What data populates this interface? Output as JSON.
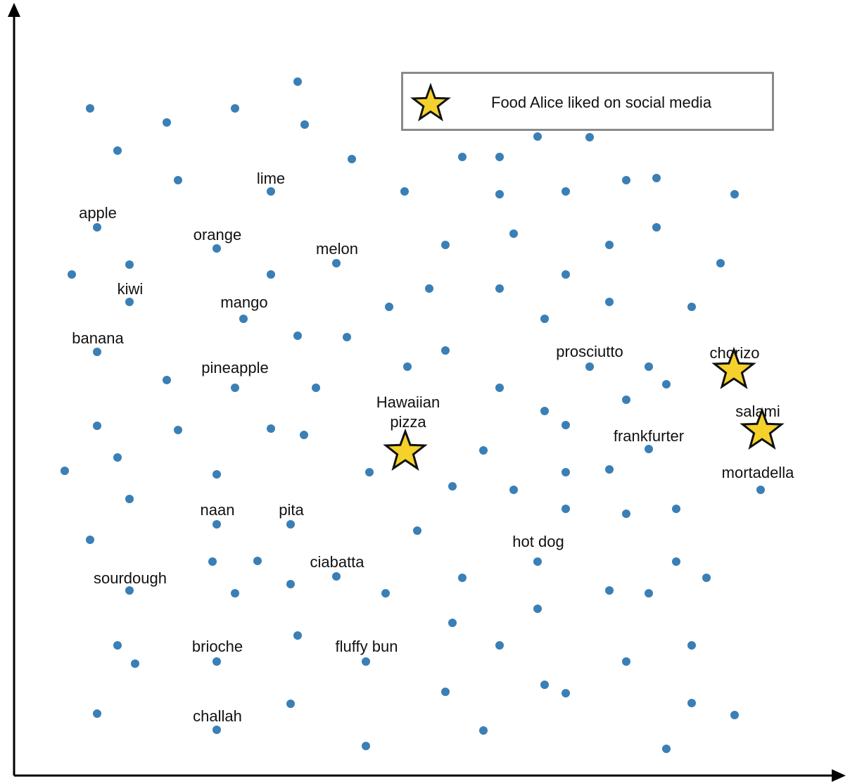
{
  "colors": {
    "point": "#3a7fb5",
    "star_fill": "#f5d12c",
    "star_stroke": "#111111",
    "axis": "#000000",
    "legend_border": "#8a8a8a"
  },
  "legend": {
    "label": "Food Alice liked on social media",
    "icon": "star-icon"
  },
  "labels": [
    "lime",
    "apple",
    "orange",
    "melon",
    "kiwi",
    "mango",
    "banana",
    "pineapple",
    "prosciutto",
    "chorizo",
    "Hawaiian",
    "pizza",
    "salami",
    "frankfurter",
    "mortadella",
    "naan",
    "pita",
    "hot dog",
    "ciabatta",
    "sourdough",
    "brioche",
    "fluffy bun",
    "challah"
  ],
  "liked_foods": [
    "chorizo",
    "salami",
    "Hawaiian pizza"
  ]
}
